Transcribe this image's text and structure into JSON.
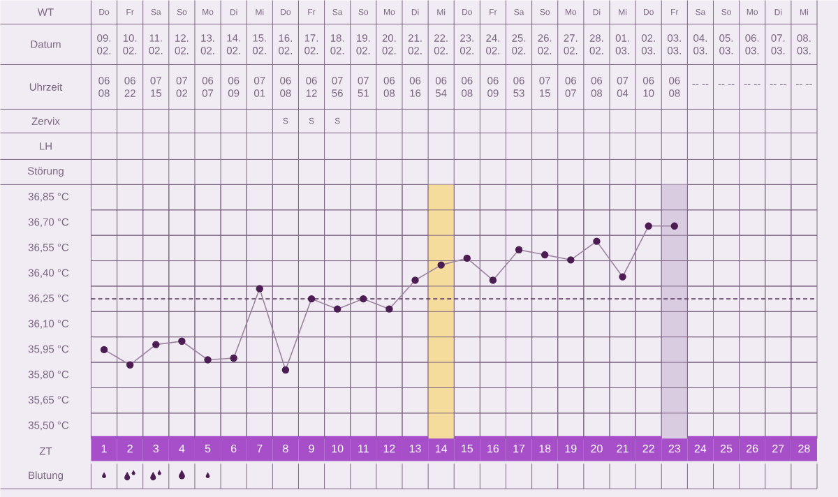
{
  "chart_data": [
    {
      "type": "heatmap",
      "grid": true,
      "categories": [
        null,
        null,
        null,
        null,
        null,
        null,
        null,
        null,
        null,
        null,
        null,
        null,
        null,
        null,
        null,
        null,
        null,
        null,
        null,
        null,
        null,
        null,
        null,
        null,
        null,
        null,
        null,
        null
      ],
      "y_categories": [
        "WT",
        "Datum",
        "Uhrzeit",
        "Zervix",
        "LH",
        "Störung"
      ],
      "cells": [
        [
          null,
          null,
          null,
          null,
          null,
          null,
          null,
          null,
          null,
          null,
          null,
          null,
          null,
          null,
          null,
          null,
          null,
          null,
          null,
          null,
          null,
          null,
          null,
          null,
          null,
          null,
          null,
          null
        ],
        [
          null,
          null,
          null,
          null,
          null,
          null,
          null,
          null,
          null,
          null,
          null,
          null,
          null,
          null,
          null,
          null,
          null,
          null,
          null,
          null,
          null,
          null,
          null,
          null,
          null,
          null,
          null,
          null
        ],
        [
          null,
          null,
          null,
          null,
          null,
          null,
          null,
          null,
          null,
          null,
          null,
          null,
          null,
          null,
          null,
          null,
          null,
          null,
          null,
          null,
          null,
          null,
          null,
          null,
          null,
          null,
          null,
          null
        ],
        [
          null,
          null,
          null,
          null,
          null,
          null,
          null,
          null,
          null,
          null,
          null,
          null,
          null,
          null,
          null,
          null,
          null,
          null,
          null,
          null,
          null,
          null,
          null,
          null,
          null,
          null,
          null,
          null
        ],
        [
          null,
          null,
          null,
          null,
          null,
          null,
          null,
          null,
          null,
          null,
          null,
          null,
          null,
          null,
          null,
          null,
          null,
          null,
          null,
          null,
          null,
          null,
          null,
          null,
          null,
          null,
          null,
          null
        ],
        [
          null,
          null,
          null,
          null,
          null,
          null,
          null,
          null,
          null,
          null,
          null,
          null,
          null,
          null,
          null,
          null,
          null,
          null,
          null,
          null,
          null,
          null,
          null,
          null,
          null,
          null,
          null,
          null
        ]
      ],
      "cell_labels": [
        [
          "Do",
          "Fr",
          "Sa",
          "So",
          "Mo",
          "Di",
          "Mi",
          "Do",
          "Fr",
          "Sa",
          "So",
          "Mo",
          "Di",
          "Mi",
          "Do",
          "Fr",
          "Sa",
          "So",
          "Mo",
          "Di",
          "Mi",
          "Do",
          "Fr",
          "Sa",
          "So",
          "Mo",
          "Di",
          "Mi"
        ],
        [
          "09. 02.",
          "10. 02.",
          "11. 02.",
          "12. 02.",
          "13. 02.",
          "14. 02.",
          "15. 02.",
          "16. 02.",
          "17. 02.",
          "18. 02.",
          "19. 02.",
          "20. 02.",
          "21. 02.",
          "22. 02.",
          "23. 02.",
          "24. 02.",
          "25. 02.",
          "26. 02.",
          "27. 02.",
          "28. 02.",
          "01. 03.",
          "02. 03.",
          "03. 03.",
          "04. 03.",
          "05. 03.",
          "06. 03.",
          "07. 03.",
          "08. 03."
        ],
        [
          "06 08",
          "06 22",
          "07 15",
          "07 02",
          "06 07",
          "06 09",
          "07 01",
          "06 08",
          "06 12",
          "07 56",
          "07 51",
          "06 08",
          "06 16",
          "06 54",
          "06 08",
          "06 09",
          "06 53",
          "07 15",
          "06 07",
          "06 08",
          "07 04",
          "06 10",
          "06 08",
          "-- --",
          "-- --",
          "-- --",
          "-- --",
          "-- --"
        ],
        [
          null,
          null,
          null,
          null,
          null,
          null,
          null,
          "S",
          "S",
          "S",
          null,
          null,
          null,
          null,
          null,
          null,
          null,
          null,
          null,
          null,
          null,
          null,
          null,
          null,
          null,
          null,
          null,
          null
        ],
        [
          null,
          null,
          null,
          null,
          null,
          null,
          null,
          null,
          null,
          null,
          null,
          null,
          null,
          null,
          null,
          null,
          null,
          null,
          null,
          null,
          null,
          null,
          null,
          null,
          null,
          null,
          null,
          null
        ],
        [
          null,
          null,
          null,
          null,
          null,
          null,
          null,
          null,
          null,
          null,
          null,
          null,
          null,
          null,
          null,
          null,
          null,
          null,
          null,
          null,
          null,
          null,
          null,
          null,
          null,
          null,
          null,
          null
        ]
      ]
    },
    {
      "type": "line",
      "xlabel": "ZT",
      "categories": [
        "1",
        "2",
        "3",
        "4",
        "5",
        "6",
        "7",
        "8",
        "9",
        "10",
        "11",
        "12",
        "13",
        "14",
        "15",
        "16",
        "17",
        "18",
        "19",
        "20",
        "21",
        "22",
        "23",
        "24",
        "25",
        "26",
        "27",
        "28"
      ],
      "series": [
        {
          "color": "#4b1d52",
          "values": [
            35.95,
            35.86,
            35.98,
            36.0,
            35.89,
            35.9,
            36.31,
            35.83,
            36.25,
            36.19,
            36.25,
            36.19,
            36.36,
            36.45,
            36.49,
            36.36,
            36.54,
            36.51,
            36.48,
            36.59,
            36.38,
            36.68,
            36.68,
            null,
            null,
            null,
            null,
            null
          ]
        }
      ],
      "ylim": [
        35.425,
        36.925
      ],
      "yticks": [
        {
          "value": 35.5,
          "label": "35,50 °C"
        },
        {
          "value": 35.65,
          "label": "35,65 °C"
        },
        {
          "value": 35.8,
          "label": "35,80 °C"
        },
        {
          "value": 35.95,
          "label": "35,95 °C"
        },
        {
          "value": 36.1,
          "label": "36,10 °C"
        },
        {
          "value": 36.25,
          "label": "36,25 °C"
        },
        {
          "value": 36.4,
          "label": "36,40 °C"
        },
        {
          "value": 36.55,
          "label": "36,55 °C"
        },
        {
          "value": 36.7,
          "label": "36,70 °C"
        },
        {
          "value": 36.85,
          "label": "36,85 °C"
        }
      ],
      "grid": true,
      "marker": "circle",
      "line_style": "solid",
      "ref_lines": [
        {
          "axis": "y",
          "value": 36.25,
          "color": "#5a3a60",
          "line_style": "dashed"
        }
      ],
      "bands": [
        {
          "axis": "x",
          "from": "14",
          "to": "14",
          "color": "#f6dc9c"
        },
        {
          "axis": "x",
          "from": "23",
          "to": "23",
          "color": "#d9cbe0"
        }
      ],
      "annotations": [
        "Blutung"
      ]
    }
  ]
}
